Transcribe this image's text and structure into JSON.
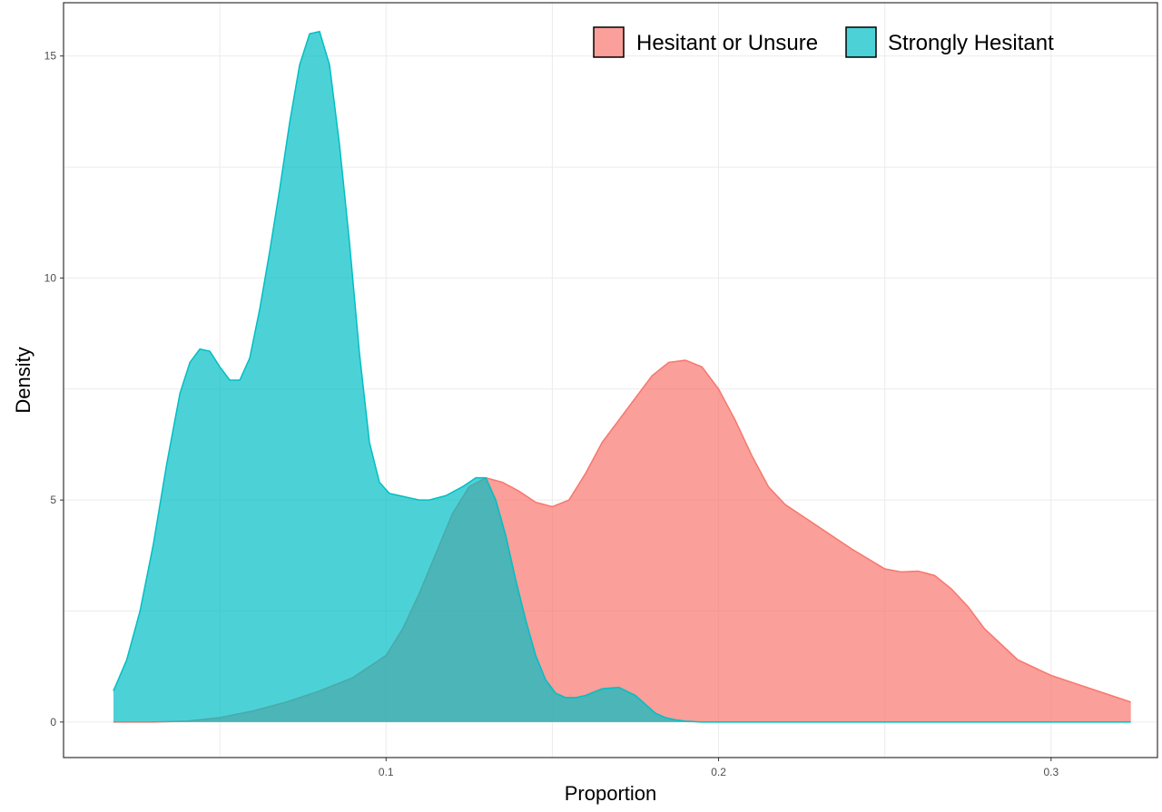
{
  "chart_data": {
    "type": "area",
    "xlabel": "Proportion",
    "ylabel": "Density",
    "xlim": [
      0.003,
      0.332
    ],
    "ylim": [
      -0.8,
      16.2
    ],
    "xticks": [
      0.1,
      0.2,
      0.3
    ],
    "xtick_labels": [
      "0.1",
      "0.2",
      "0.3"
    ],
    "yticks": [
      0,
      5,
      10,
      15
    ],
    "ytick_labels": [
      "0",
      "5",
      "10",
      "15"
    ],
    "grid": true,
    "legend_position": "top-right",
    "series": [
      {
        "name": "Hesitant or Unsure",
        "color": "#F8766D",
        "opacity": 0.7,
        "x": [
          0.018,
          0.03,
          0.04,
          0.05,
          0.06,
          0.07,
          0.08,
          0.09,
          0.1,
          0.105,
          0.11,
          0.115,
          0.12,
          0.125,
          0.13,
          0.135,
          0.14,
          0.145,
          0.15,
          0.155,
          0.16,
          0.165,
          0.17,
          0.175,
          0.18,
          0.185,
          0.19,
          0.195,
          0.2,
          0.205,
          0.21,
          0.215,
          0.22,
          0.23,
          0.24,
          0.25,
          0.255,
          0.26,
          0.265,
          0.27,
          0.275,
          0.28,
          0.29,
          0.3,
          0.31,
          0.318,
          0.324
        ],
        "y": [
          0,
          0,
          0.02,
          0.1,
          0.25,
          0.45,
          0.7,
          1.0,
          1.5,
          2.1,
          2.9,
          3.8,
          4.7,
          5.3,
          5.5,
          5.4,
          5.2,
          4.95,
          4.85,
          5.0,
          5.6,
          6.3,
          6.8,
          7.3,
          7.8,
          8.1,
          8.15,
          8.0,
          7.5,
          6.8,
          6.0,
          5.3,
          4.9,
          4.4,
          3.9,
          3.45,
          3.38,
          3.4,
          3.3,
          3.0,
          2.6,
          2.1,
          1.4,
          1.05,
          0.8,
          0.6,
          0.45
        ]
      },
      {
        "name": "Strongly Hesitant",
        "color": "#00BFC4",
        "opacity": 0.7,
        "x": [
          0.018,
          0.022,
          0.026,
          0.03,
          0.034,
          0.038,
          0.041,
          0.044,
          0.047,
          0.05,
          0.053,
          0.056,
          0.059,
          0.062,
          0.065,
          0.068,
          0.071,
          0.074,
          0.077,
          0.08,
          0.083,
          0.086,
          0.089,
          0.092,
          0.095,
          0.098,
          0.101,
          0.104,
          0.107,
          0.11,
          0.113,
          0.118,
          0.123,
          0.127,
          0.13,
          0.133,
          0.136,
          0.139,
          0.142,
          0.145,
          0.148,
          0.151,
          0.154,
          0.157,
          0.16,
          0.165,
          0.17,
          0.175,
          0.178,
          0.181,
          0.184,
          0.187,
          0.19,
          0.195,
          0.2,
          0.21,
          0.25,
          0.3,
          0.324
        ],
        "y": [
          0.7,
          1.4,
          2.5,
          4.0,
          5.8,
          7.4,
          8.1,
          8.4,
          8.35,
          8.0,
          7.7,
          7.7,
          8.2,
          9.3,
          10.6,
          12.0,
          13.5,
          14.8,
          15.5,
          15.55,
          14.8,
          13.0,
          10.8,
          8.3,
          6.3,
          5.4,
          5.15,
          5.1,
          5.05,
          5.0,
          5.0,
          5.1,
          5.3,
          5.5,
          5.5,
          5.0,
          4.2,
          3.2,
          2.3,
          1.5,
          0.95,
          0.65,
          0.55,
          0.55,
          0.6,
          0.75,
          0.78,
          0.6,
          0.4,
          0.2,
          0.1,
          0.05,
          0.02,
          0.0,
          0,
          0,
          0,
          0,
          0
        ]
      }
    ]
  }
}
